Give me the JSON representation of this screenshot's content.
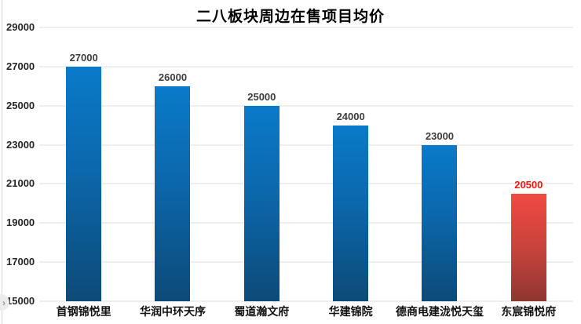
{
  "title": "二八板块周边在售项目均价",
  "nav": {
    "next_arrow": "›"
  },
  "chart_data": {
    "type": "bar",
    "title": "二八板块周边在售项目均价",
    "categories": [
      "首钢锦悦里",
      "华润中环天序",
      "蜀道瀚文府",
      "华建锦院",
      "德商电建泷悦天玺",
      "东宸锦悦府"
    ],
    "values": [
      27000,
      26000,
      25000,
      24000,
      23000,
      20500
    ],
    "data_labels": [
      "27000",
      "26000",
      "25000",
      "24000",
      "23000",
      "20500"
    ],
    "bar_colors": [
      "blue",
      "blue",
      "blue",
      "blue",
      "blue",
      "red"
    ],
    "xlabel": "",
    "ylabel": "",
    "ylim": [
      15000,
      29000
    ],
    "yticks": [
      29000,
      27000,
      25000,
      23000,
      21000,
      19000,
      17000,
      15000
    ],
    "grid": true,
    "legend_position": "none",
    "colors": {
      "blue_top": "#0a7ac9",
      "blue_bottom": "#0d4a77",
      "red_top": "#f04a42",
      "red_bottom": "#8e3631",
      "value_label": "#3d3d3d",
      "red_value_label": "#fa1410",
      "axis_label": "#262626",
      "gridline": "#dcdcdc"
    }
  }
}
